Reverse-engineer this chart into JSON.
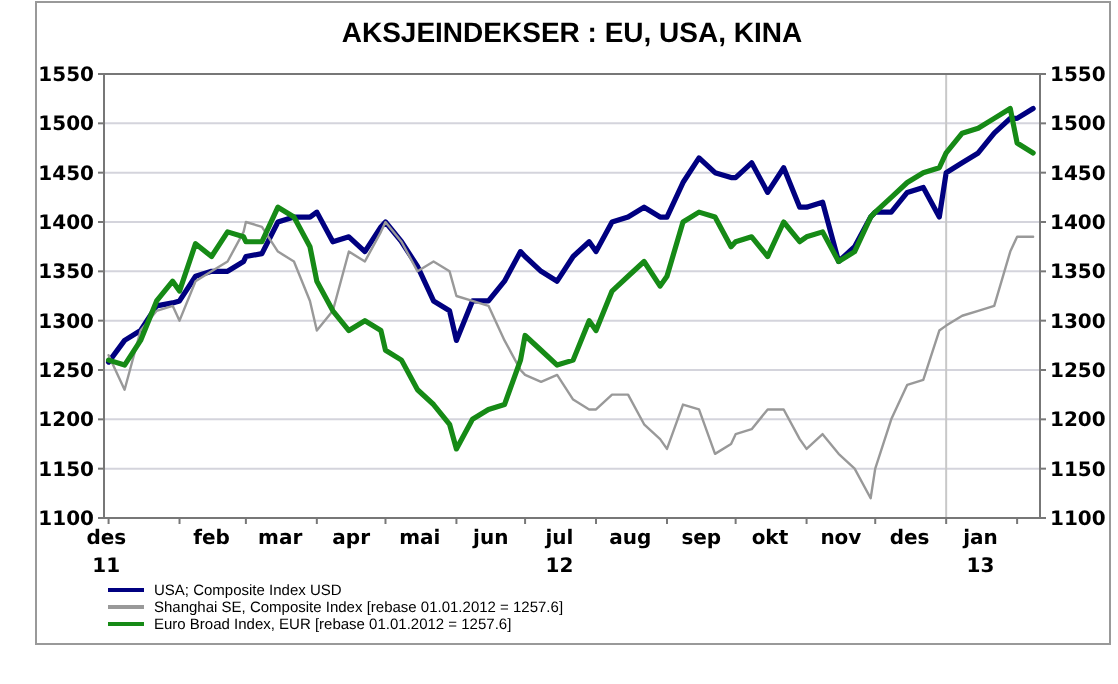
{
  "chart_data": {
    "type": "line",
    "title": "AKSJEINDEKSER : EU, USA, KINA",
    "x": [
      "2012-01-01",
      "2012-01-08",
      "2012-01-15",
      "2012-01-22",
      "2012-01-29",
      "2012-02-01",
      "2012-02-08",
      "2012-02-15",
      "2012-02-22",
      "2012-02-29",
      "2012-03-01",
      "2012-03-08",
      "2012-03-15",
      "2012-03-22",
      "2012-03-29",
      "2012-04-01",
      "2012-04-08",
      "2012-04-15",
      "2012-04-22",
      "2012-04-29",
      "2012-05-01",
      "2012-05-08",
      "2012-05-15",
      "2012-05-22",
      "2012-05-29",
      "2012-06-01",
      "2012-06-08",
      "2012-06-15",
      "2012-06-22",
      "2012-06-29",
      "2012-07-01",
      "2012-07-08",
      "2012-07-15",
      "2012-07-22",
      "2012-07-29",
      "2012-08-01",
      "2012-08-08",
      "2012-08-15",
      "2012-08-22",
      "2012-08-29",
      "2012-09-01",
      "2012-09-08",
      "2012-09-15",
      "2012-09-22",
      "2012-09-29",
      "2012-10-01",
      "2012-10-08",
      "2012-10-15",
      "2012-10-22",
      "2012-10-29",
      "2012-11-01",
      "2012-11-08",
      "2012-11-15",
      "2012-11-22",
      "2012-11-29",
      "2012-12-01",
      "2012-12-08",
      "2012-12-15",
      "2012-12-22",
      "2012-12-29",
      "2013-01-01",
      "2013-01-08",
      "2013-01-15",
      "2013-01-22",
      "2013-01-29",
      "2013-02-01",
      "2013-02-08"
    ],
    "series": [
      {
        "name": "USA; Composite Index USD",
        "color": "#000080",
        "values": [
          1258,
          1280,
          1290,
          1315,
          1318,
          1320,
          1345,
          1350,
          1350,
          1360,
          1365,
          1368,
          1400,
          1405,
          1405,
          1410,
          1380,
          1385,
          1370,
          1395,
          1400,
          1380,
          1355,
          1320,
          1310,
          1280,
          1320,
          1320,
          1340,
          1370,
          1365,
          1350,
          1340,
          1365,
          1380,
          1370,
          1400,
          1405,
          1415,
          1405,
          1405,
          1440,
          1465,
          1450,
          1445,
          1445,
          1460,
          1430,
          1455,
          1415,
          1415,
          1420,
          1360,
          1375,
          1405,
          1410,
          1410,
          1430,
          1435,
          1405,
          1450,
          1460,
          1470,
          1490,
          1505,
          1505,
          1515
        ]
      },
      {
        "name": "Shanghai SE, Composite Index [rebase 01.01.2012 = 1257.6]",
        "color": "#999999",
        "values": [
          1265,
          1230,
          1290,
          1310,
          1315,
          1300,
          1340,
          1350,
          1360,
          1390,
          1400,
          1395,
          1370,
          1360,
          1320,
          1290,
          1310,
          1370,
          1360,
          1390,
          1400,
          1380,
          1350,
          1360,
          1350,
          1325,
          1320,
          1315,
          1280,
          1250,
          1245,
          1238,
          1245,
          1220,
          1210,
          1210,
          1225,
          1225,
          1195,
          1180,
          1170,
          1215,
          1210,
          1165,
          1175,
          1185,
          1190,
          1210,
          1210,
          1180,
          1170,
          1185,
          1165,
          1150,
          1120,
          1150,
          1200,
          1235,
          1240,
          1290,
          1295,
          1305,
          1310,
          1315,
          1370,
          1385,
          1385
        ]
      },
      {
        "name": "Euro Broad Index, EUR [rebase 01.01.2012 = 1257.6]",
        "color": "#168a16",
        "values": [
          1260,
          1255,
          1280,
          1320,
          1340,
          1330,
          1378,
          1365,
          1390,
          1385,
          1380,
          1380,
          1415,
          1405,
          1375,
          1340,
          1310,
          1290,
          1300,
          1290,
          1270,
          1260,
          1230,
          1215,
          1195,
          1170,
          1200,
          1210,
          1215,
          1260,
          1285,
          1270,
          1255,
          1260,
          1300,
          1290,
          1330,
          1345,
          1360,
          1335,
          1345,
          1400,
          1410,
          1405,
          1375,
          1380,
          1385,
          1365,
          1400,
          1380,
          1385,
          1390,
          1360,
          1370,
          1405,
          1410,
          1425,
          1440,
          1450,
          1455,
          1470,
          1490,
          1495,
          1505,
          1515,
          1480,
          1470
        ]
      }
    ],
    "xlim": [
      "2011-12-30",
      "2013-02-11"
    ],
    "xticks": [
      {
        "value": "2012-01-01",
        "label": null
      },
      {
        "value": "2012-02-01",
        "label": null
      },
      {
        "value": "2012-03-01",
        "label": null
      },
      {
        "value": "2012-04-01",
        "label": null
      },
      {
        "value": "2012-05-01",
        "label": null
      },
      {
        "value": "2012-06-01",
        "label": null
      },
      {
        "value": "2012-07-01",
        "label": null
      },
      {
        "value": "2012-08-01",
        "label": null
      },
      {
        "value": "2012-09-01",
        "label": null
      },
      {
        "value": "2012-10-01",
        "label": null
      },
      {
        "value": "2012-11-01",
        "label": null
      },
      {
        "value": "2012-12-01",
        "label": null
      },
      {
        "value": "2013-01-01",
        "label": null
      },
      {
        "value": "2013-02-01",
        "label": null
      },
      {
        "value": "2011-12-31",
        "label": "des\n11"
      },
      {
        "value": "2012-02-15",
        "label": "feb"
      },
      {
        "value": "2012-03-16",
        "label": "mar"
      },
      {
        "value": "2012-04-16",
        "label": "apr"
      },
      {
        "value": "2012-05-16",
        "label": "mai"
      },
      {
        "value": "2012-06-16",
        "label": "jun"
      },
      {
        "value": "2012-07-16",
        "label": "jul\n12"
      },
      {
        "value": "2012-08-16",
        "label": "aug"
      },
      {
        "value": "2012-09-16",
        "label": "sep"
      },
      {
        "value": "2012-10-16",
        "label": "okt"
      },
      {
        "value": "2012-11-16",
        "label": "nov"
      },
      {
        "value": "2012-12-16",
        "label": "des"
      },
      {
        "value": "2013-01-16",
        "label": "jan\n13"
      }
    ],
    "ylim": [
      1100,
      1550
    ],
    "yticks": [
      1100,
      1150,
      1200,
      1250,
      1300,
      1350,
      1400,
      1450,
      1500,
      1550
    ],
    "y2lim": [
      1100,
      1550
    ],
    "y2ticks": [
      1100,
      1150,
      1200,
      1250,
      1300,
      1350,
      1400,
      1450,
      1500,
      1550
    ],
    "ref_lines": [
      {
        "axis": "x",
        "value": "2013-01-01",
        "color": "#c8c8c8"
      }
    ],
    "grid": "y",
    "legend": "bottom",
    "marker": "none",
    "line_style": "solid"
  }
}
